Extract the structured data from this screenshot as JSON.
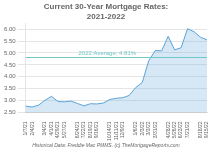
{
  "chart_data": {
    "type": "area",
    "title": "Current 30-Year Mortgage Rates:\n2021-2022",
    "footnote": "Historical Data: Freddie Mac PMMS. (c) TheMortgageReports.com",
    "categories": [
      "1/7/21",
      "2/4/21",
      null,
      "3/4/21",
      "4/1/21",
      "4/29/21",
      "5/27/21",
      null,
      "6/24/21",
      "7/22/21",
      "8/19/21",
      "9/16/21",
      null,
      "10/14/21",
      "11/11/21",
      "12/9/21",
      null,
      "1/6/22",
      "2/3/22",
      "3/3/22",
      "3/31/22",
      null,
      "4/28/22",
      "5/26/22",
      "6/23/22",
      "7/21/22",
      null,
      "8/18/22",
      "9/15/22"
    ],
    "values": [
      2.77,
      2.73,
      2.81,
      3.02,
      3.18,
      2.96,
      2.95,
      2.98,
      2.88,
      2.78,
      2.87,
      2.86,
      2.9,
      3.05,
      3.1,
      3.12,
      3.22,
      3.55,
      3.76,
      4.67,
      5.1,
      5.09,
      5.7,
      5.13,
      5.22,
      6.02,
      5.89,
      5.66,
      5.55
    ],
    "color": "#5ba3d9",
    "annotations": [
      {
        "text": "2022 Average: 4.81%",
        "y": 4.81,
        "color": "#70c8c8"
      }
    ],
    "ylim": [
      2.5,
      6.25
    ],
    "yticks": [
      {
        "value": 2.5,
        "label": "2.50"
      },
      {
        "value": 3.0,
        "label": "3.00"
      },
      {
        "value": 3.5,
        "label": "3.50"
      },
      {
        "value": 4.0,
        "label": "4.00"
      },
      {
        "value": 4.5,
        "label": "4.50"
      },
      {
        "value": 5.0,
        "label": "5.00"
      },
      {
        "value": 5.5,
        "label": "5.50"
      },
      {
        "value": 6.0,
        "label": "6.00"
      }
    ],
    "grid": true
  }
}
